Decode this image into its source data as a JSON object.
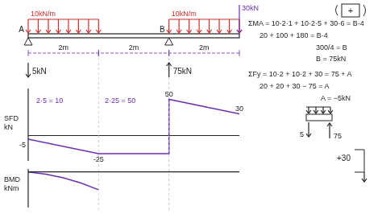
{
  "beam": {
    "supports": [
      {
        "label": "A",
        "at": 0
      },
      {
        "label": "B",
        "at": 4
      }
    ],
    "spans": [
      "2m",
      "2m",
      "2m"
    ],
    "loads": [
      {
        "label": "10kN/m",
        "from": 0,
        "to": 2
      },
      {
        "label": "10kN/m",
        "from": 4,
        "to": 6
      },
      {
        "label": "30kN",
        "at": 6
      }
    ],
    "reactions": [
      {
        "label": "5kN",
        "at": 0,
        "direction": "down"
      },
      {
        "label": "75kN",
        "at": 4,
        "direction": "up"
      }
    ],
    "sign_convention": "+"
  },
  "chart_data": [
    {
      "type": "line",
      "ylabel": [
        "SFD",
        "kN"
      ],
      "x": [
        0,
        2,
        4,
        4,
        6
      ],
      "values": [
        -5,
        -25,
        -25,
        50,
        30
      ],
      "value_labels": [
        "-5",
        "-25",
        null,
        "50",
        "30"
      ],
      "annotations": [
        "2·5 = 10",
        "2·25 = 50"
      ],
      "xlim": [
        0,
        6
      ],
      "ylim": [
        -35,
        65
      ],
      "color": "#6b2fb3",
      "grid": false,
      "tick_labels": false
    },
    {
      "type": "line",
      "ylabel": [
        "BMD",
        "kNm"
      ],
      "x": [
        0,
        0.5,
        1,
        1.5,
        2
      ],
      "values": [
        0,
        -3.75,
        -10,
        -18.75,
        -30
      ],
      "xlim": [
        0,
        6
      ],
      "ylim": [
        -60,
        5
      ],
      "color": "#6b2fb3",
      "grid": false,
      "tick_labels": false
    }
  ],
  "calculations": [
    "ΣMA = 10·2·1 + 10·2·5 + 30·6 = B·4",
    "20 + 100 + 180 = B·4",
    "300/4 = B",
    "B = 75kN",
    "ΣFy = 10·2 + 10·2 + 30 = 75 + A",
    "20 + 20 + 30 − 75 = A",
    "A = −5kN"
  ],
  "sketches": {
    "reactions": [
      "5",
      "75"
    ],
    "end_shear": "+30"
  }
}
